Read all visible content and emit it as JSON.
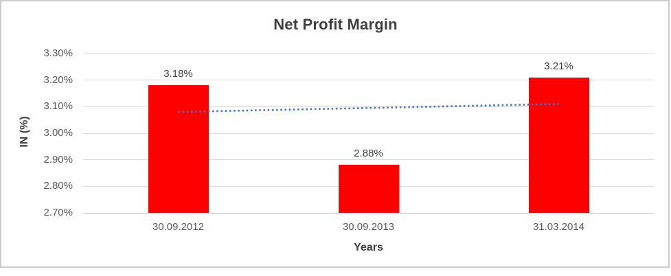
{
  "chart_data": {
    "type": "bar",
    "title": "Net Profit Margin",
    "xlabel": "Years",
    "ylabel": "IN (%)",
    "categories": [
      "30.09.2012",
      "30.09.2013",
      "31.03.2014"
    ],
    "values": [
      3.18,
      2.88,
      3.21
    ],
    "value_labels": [
      "3.18%",
      "2.88%",
      "3.21%"
    ],
    "ylim": [
      2.7,
      3.3
    ],
    "yticks": [
      {
        "value": 2.7,
        "label": "2.70%"
      },
      {
        "value": 2.8,
        "label": "2.80%"
      },
      {
        "value": 2.9,
        "label": "2.90%"
      },
      {
        "value": 3.0,
        "label": "3.00%"
      },
      {
        "value": 3.1,
        "label": "3.10%"
      },
      {
        "value": 3.2,
        "label": "3.20%"
      },
      {
        "value": 3.3,
        "label": "3.30%"
      }
    ],
    "grid": "horizontal",
    "legend": "none",
    "bar_color": "#FF0000",
    "trendline": {
      "type": "linear",
      "style": "dotted",
      "color": "#4472C4",
      "start_value": 3.08,
      "end_value": 3.11
    }
  },
  "colors": {
    "title_text": "#3F3F3F",
    "axis_title_text": "#3F3F3F",
    "tick_text": "#595959",
    "data_label_text": "#404040",
    "gridline": "#D9D9D9",
    "axis_line": "#BFBFBF",
    "frame_border": "#CDCBC9",
    "background": "#FFFFFF"
  }
}
